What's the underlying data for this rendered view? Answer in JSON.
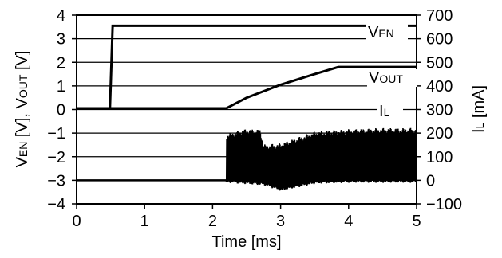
{
  "chart_data": {
    "type": "line",
    "xlabel": "Time [ms]",
    "x_ticks": [
      "0",
      "1",
      "2",
      "3",
      "4",
      "5"
    ],
    "xlim": [
      0,
      5
    ],
    "y_left": {
      "label": {
        "main1": "V",
        "sub1": "EN",
        "mid": " [V], V",
        "sub2": "OUT",
        "end": " [V]"
      },
      "ticks": [
        "4",
        "3",
        "2",
        "1",
        "0",
        "−1",
        "−2",
        "−3",
        "−4"
      ],
      "ylim": [
        -4,
        4
      ]
    },
    "y_right": {
      "label": {
        "main": "I",
        "sub": "L",
        "end": " [mA]"
      },
      "ticks": [
        "700",
        "600",
        "500",
        "400",
        "300",
        "200",
        "100",
        "0",
        "−100"
      ],
      "ylim": [
        -100,
        700
      ]
    },
    "grid": "horizontal",
    "series": [
      {
        "name": "VEN",
        "axis": "left",
        "x": [
          0,
          0.49,
          0.53,
          5
        ],
        "y": [
          0.05,
          0.05,
          3.55,
          3.55
        ]
      },
      {
        "name": "VOUT",
        "axis": "left",
        "x": [
          0,
          2.2,
          2.5,
          3.0,
          3.5,
          3.85,
          5
        ],
        "y": [
          0.05,
          0.05,
          0.5,
          1.05,
          1.5,
          1.8,
          1.8
        ]
      },
      {
        "name": "IL",
        "axis": "right",
        "x": [
          0,
          2.2,
          2.2,
          2.45,
          2.7,
          2.75,
          3.0,
          3.5,
          4.0,
          4.5,
          5.0
        ],
        "y_lower": [
          0,
          0,
          -5,
          -10,
          -15,
          -15,
          -40,
          -10,
          -5,
          -5,
          -5
        ],
        "y_upper": [
          0,
          0,
          185,
          205,
          205,
          140,
          145,
          195,
          205,
          210,
          210
        ]
      }
    ],
    "annotations": [
      {
        "main": "V",
        "sub": "EN",
        "series": "VEN"
      },
      {
        "main": "V",
        "sub": "OUT",
        "series": "VOUT"
      },
      {
        "main": "I",
        "sub": "L",
        "series": "IL"
      }
    ]
  }
}
